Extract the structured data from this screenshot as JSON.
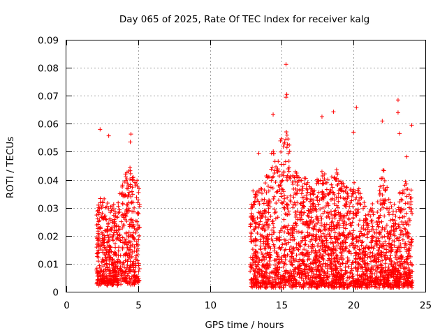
{
  "chart_data": {
    "type": "scatter",
    "title": "Day 065 of 2025, Rate Of TEC Index for receiver kalg",
    "xlabel": "GPS time / hours",
    "ylabel": "ROTI / TECUs",
    "xlim": [
      0,
      25
    ],
    "ylim": [
      0,
      0.09
    ],
    "xticks": [
      0,
      5,
      10,
      15,
      20,
      25
    ],
    "xtick_labels": [
      "0",
      "5",
      "10",
      "15",
      "20",
      "25"
    ],
    "yticks": [
      0,
      0.01,
      0.02,
      0.03,
      0.04,
      0.05,
      0.06,
      0.07,
      0.08,
      0.09
    ],
    "ytick_labels": [
      "0",
      "0.01",
      "0.02",
      "0.03",
      "0.04",
      "0.05",
      "0.06",
      "0.07",
      "0.08",
      "0.09"
    ],
    "grid": true,
    "marker": "+",
    "color": "#ff0000",
    "series": [
      {
        "name": "ROTI",
        "segments": [
          {
            "x_start": 2.1,
            "x_end": 5.1,
            "density": "high",
            "typical_range": [
              0.003,
              0.04
            ]
          },
          {
            "x_start": 12.8,
            "x_end": 24.1,
            "density": "high",
            "typical_range": [
              0.002,
              0.045
            ]
          }
        ],
        "notable_points": [
          {
            "x": 2.35,
            "y": 0.058
          },
          {
            "x": 2.95,
            "y": 0.0557
          },
          {
            "x": 4.5,
            "y": 0.0563
          },
          {
            "x": 4.45,
            "y": 0.0535
          },
          {
            "x": 15.3,
            "y": 0.0812
          },
          {
            "x": 15.35,
            "y": 0.0705
          },
          {
            "x": 15.3,
            "y": 0.0695
          },
          {
            "x": 14.4,
            "y": 0.0633
          },
          {
            "x": 17.8,
            "y": 0.0625
          },
          {
            "x": 18.6,
            "y": 0.0643
          },
          {
            "x": 20.2,
            "y": 0.0658
          },
          {
            "x": 20.0,
            "y": 0.057
          },
          {
            "x": 22.0,
            "y": 0.061
          },
          {
            "x": 23.1,
            "y": 0.0685
          },
          {
            "x": 23.1,
            "y": 0.064
          },
          {
            "x": 23.2,
            "y": 0.0565
          },
          {
            "x": 24.05,
            "y": 0.0595
          },
          {
            "x": 23.7,
            "y": 0.0482
          },
          {
            "x": 13.0,
            "y": 0.036
          },
          {
            "x": 13.4,
            "y": 0.0495
          }
        ]
      }
    ]
  }
}
